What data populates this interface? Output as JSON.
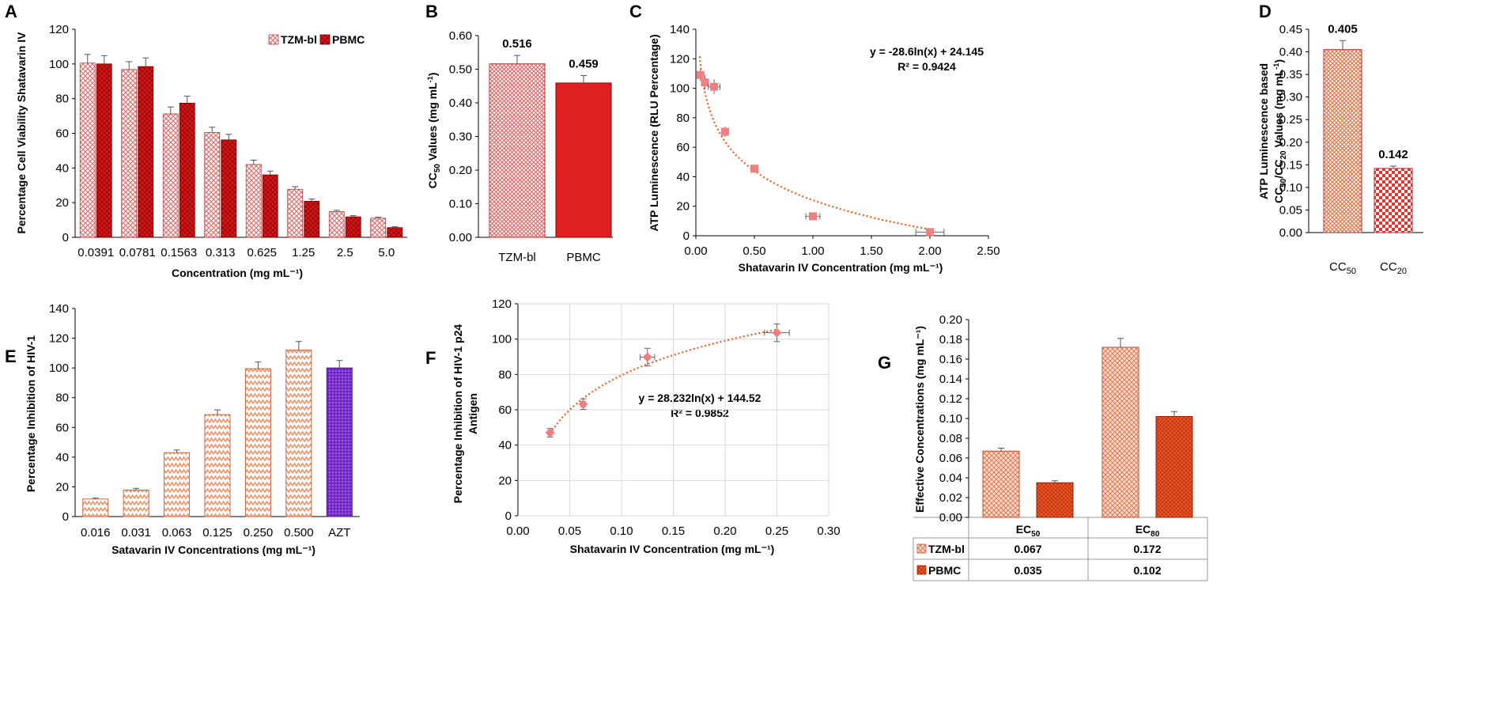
{
  "colors": {
    "tzm": "#f4b183",
    "tzm_checker": "#f8b4b4",
    "pbmc": "#e02020",
    "pbmc_dark": "#c00000",
    "trend": "#f25a22",
    "azt": "#7b2fd0",
    "point": "#f08080"
  },
  "chart_data": [
    {
      "panel": "A",
      "type": "bar",
      "pattern": "crosshatch",
      "ylabel": "Percentage Cell Viability Shatavarin IV",
      "xlabel": "Concentration (mg mL⁻¹)",
      "ylim": [
        0,
        120
      ],
      "yticks": [
        "0",
        "20",
        "40",
        "60",
        "80",
        "100",
        "120"
      ],
      "categories": [
        "0.0391",
        "0.0781",
        "0.1563",
        "0.313",
        "0.625",
        "1.25",
        "2.5",
        "5.0"
      ],
      "legend": [
        "TZM-bl",
        "PBMC"
      ],
      "series": [
        {
          "name": "TZM-bl",
          "values": [
            100.5,
            96.8,
            71.2,
            60.5,
            42.0,
            27.7,
            14.8,
            11.0
          ],
          "errors": [
            5,
            4.5,
            4,
            3,
            2.5,
            1.5,
            0.8,
            0.6
          ]
        },
        {
          "name": "PBMC",
          "values": [
            100.0,
            98.5,
            77.4,
            56.2,
            36.0,
            20.8,
            11.8,
            5.6
          ],
          "errors": [
            4.8,
            5,
            4,
            3.2,
            2.2,
            1.3,
            0.7,
            0.5
          ]
        }
      ]
    },
    {
      "panel": "B",
      "type": "bar",
      "ylabel": "CC50 Values (mg mL⁻¹)",
      "ylim": [
        0,
        0.6
      ],
      "yticks": [
        "0.00",
        "0.10",
        "0.20",
        "0.30",
        "0.40",
        "0.50",
        "0.60"
      ],
      "categories": [
        "TZM-bl",
        "PBMC"
      ],
      "values": [
        0.516,
        0.459
      ],
      "errors": [
        0.025,
        0.022
      ],
      "data_labels": [
        "0.516",
        "0.459"
      ]
    },
    {
      "panel": "C",
      "type": "scatter",
      "ylabel": "ATP Luminescence (RLU Percentage)",
      "xlabel": "Shatavarin IV Concentration (mg mL⁻¹)",
      "xlim": [
        0,
        2.5
      ],
      "ylim": [
        0,
        140
      ],
      "xticks": [
        "0.00",
        "0.50",
        "1.00",
        "1.50",
        "2.00",
        "2.50"
      ],
      "yticks": [
        "0",
        "20",
        "40",
        "60",
        "80",
        "100",
        "120",
        "140"
      ],
      "x": [
        0.039,
        0.078,
        0.156,
        0.25,
        0.5,
        1.0,
        2.0
      ],
      "y": [
        109,
        104,
        101,
        70.5,
        45.5,
        13.2,
        2.5
      ],
      "xerr": [
        0.02,
        0.03,
        0.05,
        0.03,
        0.02,
        0.06,
        0.12
      ],
      "yerr": [
        4,
        5,
        5,
        3.5,
        1.5,
        1.5,
        1
      ],
      "trend": {
        "a": -28.6,
        "b": 24.145
      },
      "equation": "y = -28.6ln(x) + 24.145",
      "r2": "R² = 0.9424"
    },
    {
      "panel": "D",
      "type": "bar",
      "ylabel_line1": "ATP Luminescence based",
      "ylabel_line2": "CC50/CC20 Values (mg mL⁻¹)",
      "ylim": [
        0,
        0.45
      ],
      "yticks": [
        "0.00",
        "0.05",
        "0.10",
        "0.15",
        "0.20",
        "0.25",
        "0.30",
        "0.35",
        "0.40",
        "0.45"
      ],
      "categories": [
        "CC50",
        "CC20"
      ],
      "values": [
        0.405,
        0.142
      ],
      "errors": [
        0.02,
        0.005
      ],
      "data_labels": [
        "0.405",
        "0.142"
      ]
    },
    {
      "panel": "E",
      "type": "bar",
      "ylabel": "Percentage Inhibition of HIV-1",
      "xlabel": "Satavarin IV Concentrations (mg mL⁻¹)",
      "ylim": [
        0,
        140
      ],
      "yticks": [
        "0",
        "20",
        "40",
        "60",
        "80",
        "100",
        "120",
        "140"
      ],
      "categories": [
        "0.016",
        "0.031",
        "0.063",
        "0.125",
        "0.250",
        "0.500",
        "AZT"
      ],
      "values": [
        11.8,
        17.8,
        43.0,
        68.6,
        99.5,
        112.0,
        100.0
      ],
      "errors": [
        0.6,
        1.2,
        1.8,
        3.2,
        4.5,
        5.8,
        5.0
      ]
    },
    {
      "panel": "F",
      "type": "scatter",
      "ylabel_line1": "Percentage Inhibition of HIV-1 p24",
      "ylabel_line2": "Antigen",
      "xlabel": "Shatavarin IV Concentration (mg mL⁻¹)",
      "xlim": [
        0,
        0.3
      ],
      "ylim": [
        0,
        120
      ],
      "xticks": [
        "0.00",
        "0.05",
        "0.10",
        "0.15",
        "0.20",
        "0.25",
        "0.30"
      ],
      "yticks": [
        "0",
        "20",
        "40",
        "60",
        "80",
        "100",
        "120"
      ],
      "x": [
        0.031,
        0.063,
        0.125,
        0.25
      ],
      "y": [
        47.0,
        63.2,
        89.8,
        103.6
      ],
      "xerr": [
        0.002,
        0.002,
        0.007,
        0.012
      ],
      "yerr": [
        2.5,
        3,
        5,
        5
      ],
      "trend": {
        "a": 28.232,
        "b": 144.52
      },
      "equation": "y = 28.232ln(x) + 144.52",
      "r2": "R² = 0.9852"
    },
    {
      "panel": "G",
      "type": "bar",
      "ylabel": "Effective Concentrations (mg mL⁻¹)",
      "ylim": [
        0,
        0.2
      ],
      "yticks": [
        "0.00",
        "0.02",
        "0.04",
        "0.06",
        "0.08",
        "0.10",
        "0.12",
        "0.14",
        "0.16",
        "0.18",
        "0.20"
      ],
      "categories": [
        "EC50",
        "EC80"
      ],
      "series": [
        {
          "name": "TZM-bl",
          "values": [
            0.067,
            0.172
          ],
          "errors": [
            0.003,
            0.009
          ]
        },
        {
          "name": "PBMC",
          "values": [
            0.035,
            0.102
          ],
          "errors": [
            0.002,
            0.005
          ]
        }
      ],
      "table": [
        {
          "name": "TZM-bl",
          "cells": [
            "0.067",
            "0.172"
          ]
        },
        {
          "name": "PBMC",
          "cells": [
            "0.035",
            "0.102"
          ]
        }
      ]
    }
  ]
}
